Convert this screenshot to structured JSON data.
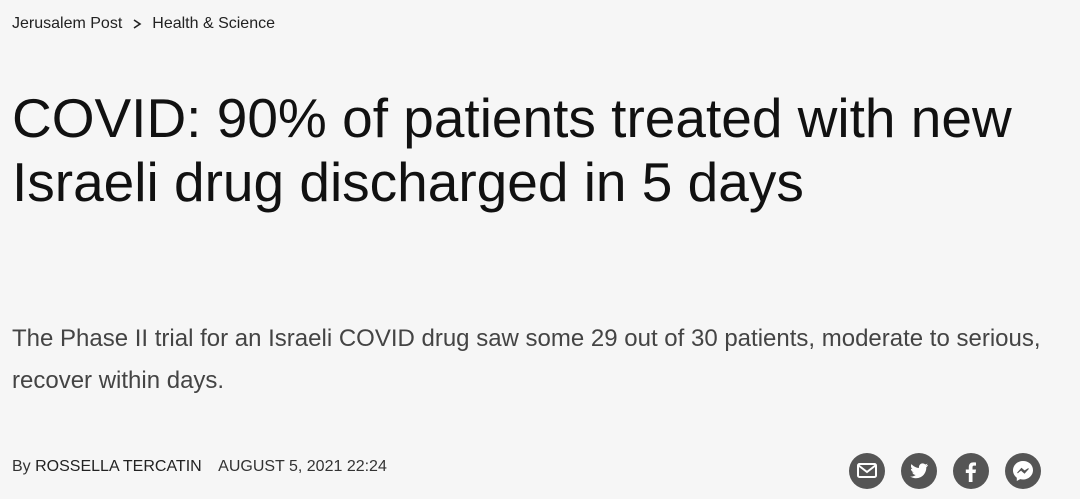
{
  "breadcrumb": {
    "site": "Jerusalem Post",
    "section": "Health & Science"
  },
  "article": {
    "title": "COVID: 90% of patients treated with new Israeli drug discharged in 5 days",
    "subtitle": "The Phase II trial for an Israeli COVID drug saw some 29 out of 30 patients, moderate to serious, recover within days.",
    "byline": {
      "prefix": "By",
      "author": "ROSSELLA TERCATIN",
      "date": "AUGUST 5, 2021 22:24"
    }
  }
}
